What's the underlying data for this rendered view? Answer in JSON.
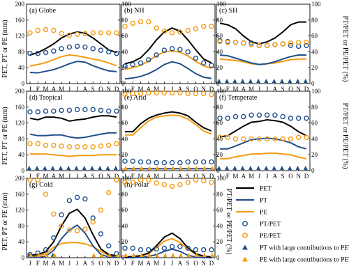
{
  "figure": {
    "left_axis_label": "PET, PT or PE (mm)",
    "right_axis_label": "PT/PET or PE/PET (%)",
    "left_ticks": [
      0,
      40,
      80,
      120,
      160,
      200
    ],
    "right_ticks": [
      0,
      20,
      40,
      60,
      80,
      100
    ],
    "months": [
      "J",
      "F",
      "M",
      "A",
      "M",
      "J",
      "J",
      "A",
      "S",
      "O",
      "N",
      "D"
    ]
  },
  "legend": {
    "items": [
      {
        "label": "PET",
        "kind": "line",
        "color": "#000000"
      },
      {
        "label": "PT",
        "kind": "line",
        "color": "#1f4e8c"
      },
      {
        "label": "PE",
        "kind": "line",
        "color": "#f39c12"
      },
      {
        "label": "PT/PET",
        "kind": "circle",
        "color": "#1f4e8c"
      },
      {
        "label": "PE/PET",
        "kind": "circle",
        "color": "#f39c12"
      },
      {
        "label": "PT with large contributions to PET",
        "kind": "triangle",
        "color": "#1f4e8c"
      },
      {
        "label": "PE with large contributions to PET",
        "kind": "triangle",
        "color": "#f39c12"
      }
    ]
  },
  "colors": {
    "PET": "#000000",
    "PT": "#1f4e8c",
    "PE": "#f39c12"
  },
  "chart_data": [
    {
      "type": "line",
      "title": "(a) Globe",
      "x": [
        "J",
        "F",
        "M",
        "A",
        "M",
        "J",
        "J",
        "A",
        "S",
        "O",
        "N",
        "D"
      ],
      "ylim_left": [
        0,
        200
      ],
      "ylim_right": [
        0,
        100
      ],
      "series": [
        {
          "name": "PET",
          "axis": "left",
          "values": [
            72,
            78,
            88,
            100,
            115,
            125,
            130,
            127,
            115,
            100,
            85,
            78
          ]
        },
        {
          "name": "PT",
          "axis": "left",
          "values": [
            28,
            27,
            31,
            35,
            42,
            50,
            56,
            54,
            45,
            38,
            32,
            30
          ]
        },
        {
          "name": "PE",
          "axis": "left",
          "values": [
            44,
            48,
            53,
            60,
            68,
            72,
            70,
            66,
            62,
            58,
            52,
            45
          ]
        },
        {
          "name": "PT/PET",
          "axis": "right",
          "values": [
            38,
            38,
            39,
            41,
            44,
            46,
            47,
            46,
            44,
            42,
            40,
            38
          ]
        },
        {
          "name": "PE/PET",
          "axis": "right",
          "values": [
            64,
            67,
            68,
            67,
            63,
            61,
            62,
            63,
            64,
            64,
            64,
            64
          ]
        },
        {
          "name": "PT with large contributions to PET",
          "months": []
        },
        {
          "name": "PE with large contributions to PET",
          "months": []
        }
      ]
    },
    {
      "type": "line",
      "title": "(b) NH",
      "x": [
        "J",
        "F",
        "M",
        "A",
        "M",
        "J",
        "J",
        "A",
        "S",
        "O",
        "N",
        "D"
      ],
      "ylim_left": [
        0,
        200
      ],
      "ylim_right": [
        0,
        100
      ],
      "series": [
        {
          "name": "PET",
          "axis": "left",
          "values": [
            50,
            55,
            65,
            85,
            110,
            130,
            140,
            132,
            110,
            85,
            62,
            52
          ]
        },
        {
          "name": "PT",
          "axis": "left",
          "values": [
            12,
            14,
            18,
            25,
            35,
            48,
            55,
            50,
            38,
            25,
            16,
            13
          ]
        },
        {
          "name": "PE",
          "axis": "left",
          "values": [
            36,
            40,
            46,
            57,
            70,
            80,
            82,
            79,
            70,
            56,
            45,
            38
          ]
        },
        {
          "name": "PT/PET",
          "axis": "right",
          "values": [
            22,
            24,
            26,
            30,
            36,
            42,
            44,
            43,
            40,
            32,
            26,
            23
          ]
        },
        {
          "name": "PE/PET",
          "axis": "right",
          "values": [
            72,
            76,
            78,
            78,
            70,
            66,
            64,
            65,
            67,
            69,
            72,
            72
          ]
        },
        {
          "name": "PT with large contributions to PET",
          "months": []
        },
        {
          "name": "PE with large contributions to PET",
          "months": []
        }
      ]
    },
    {
      "type": "line",
      "title": "(c) SH",
      "x": [
        "J",
        "F",
        "M",
        "A",
        "M",
        "J",
        "J",
        "A",
        "S",
        "O",
        "N",
        "D"
      ],
      "ylim_left": [
        0,
        200
      ],
      "ylim_right": [
        0,
        100
      ],
      "series": [
        {
          "name": "PET",
          "axis": "left",
          "values": [
            152,
            148,
            138,
            120,
            105,
            100,
            105,
            115,
            130,
            148,
            155,
            155
          ]
        },
        {
          "name": "PT",
          "axis": "left",
          "values": [
            72,
            70,
            64,
            58,
            52,
            48,
            50,
            55,
            62,
            68,
            72,
            72
          ]
        },
        {
          "name": "PE",
          "axis": "left",
          "values": [
            62,
            60,
            58,
            55,
            50,
            48,
            50,
            52,
            56,
            60,
            62,
            62
          ]
        },
        {
          "name": "PT/PET",
          "axis": "right",
          "values": [
            54,
            53,
            52,
            51,
            51,
            48,
            48,
            49,
            50,
            48,
            47,
            48
          ]
        },
        {
          "name": "PE/PET",
          "axis": "right",
          "values": [
            53,
            52,
            52,
            51,
            49,
            48,
            48,
            49,
            50,
            51,
            52,
            52
          ]
        },
        {
          "name": "PT with large contributions to PET",
          "months": [
            "J",
            "F",
            "M",
            "A",
            "M",
            "J",
            "J",
            "A",
            "S",
            "O",
            "N",
            "D"
          ]
        },
        {
          "name": "PE with large contributions to PET",
          "months": []
        }
      ]
    },
    {
      "type": "line",
      "title": "(d) Tropical",
      "x": [
        "J",
        "F",
        "M",
        "A",
        "M",
        "J",
        "J",
        "A",
        "S",
        "O",
        "N",
        "D"
      ],
      "ylim_left": [
        0,
        200
      ],
      "ylim_right": [
        0,
        100
      ],
      "series": [
        {
          "name": "PET",
          "axis": "left",
          "values": [
            132,
            128,
            135,
            135,
            132,
            125,
            128,
            130,
            135,
            138,
            138,
            135
          ]
        },
        {
          "name": "PT",
          "axis": "left",
          "values": [
            92,
            88,
            88,
            90,
            90,
            85,
            82,
            84,
            88,
            92,
            95,
            95
          ]
        },
        {
          "name": "PE",
          "axis": "left",
          "values": [
            42,
            42,
            42,
            40,
            38,
            36,
            38,
            38,
            38,
            40,
            40,
            40
          ]
        },
        {
          "name": "PT/PET",
          "axis": "right",
          "values": [
            74,
            74,
            75,
            75,
            76,
            76,
            77,
            77,
            77,
            76,
            75,
            75
          ]
        },
        {
          "name": "PE/PET",
          "axis": "right",
          "values": [
            34,
            34,
            32,
            32,
            31,
            30,
            30,
            30,
            30,
            31,
            32,
            34
          ]
        },
        {
          "name": "PT with large contributions to PET",
          "months": [
            "J",
            "F",
            "M",
            "A",
            "M",
            "J",
            "J",
            "A",
            "S",
            "O",
            "N",
            "D"
          ]
        },
        {
          "name": "PE with large contributions to PET",
          "months": []
        }
      ]
    },
    {
      "type": "line",
      "title": "(e) Arid",
      "x": [
        "J",
        "F",
        "M",
        "A",
        "M",
        "J",
        "J",
        "A",
        "S",
        "O",
        "N",
        "D"
      ],
      "ylim_left": [
        0,
        200
      ],
      "ylim_right": [
        0,
        100
      ],
      "series": [
        {
          "name": "PET",
          "axis": "left",
          "values": [
            98,
            98,
            118,
            132,
            140,
            145,
            148,
            145,
            138,
            122,
            108,
            100
          ]
        },
        {
          "name": "PT",
          "axis": "left",
          "values": [
            5,
            5,
            5,
            5,
            5,
            5,
            5,
            5,
            5,
            5,
            5,
            5
          ]
        },
        {
          "name": "PE",
          "axis": "left",
          "values": [
            90,
            90,
            108,
            125,
            135,
            138,
            140,
            138,
            130,
            116,
            100,
            92
          ]
        },
        {
          "name": "PT/PET",
          "axis": "right",
          "values": [
            12,
            12,
            11,
            11,
            10,
            10,
            10,
            10,
            11,
            11,
            11,
            11
          ]
        },
        {
          "name": "PE/PET",
          "axis": "right",
          "values": [
            96,
            97,
            97,
            98,
            98,
            98,
            98,
            98,
            97,
            97,
            97,
            96
          ]
        },
        {
          "name": "PT with large contributions to PET",
          "months": []
        },
        {
          "name": "PE with large contributions to PET",
          "months": [
            "J",
            "F",
            "M",
            "A",
            "M",
            "J",
            "J",
            "A",
            "S",
            "O",
            "N",
            "D"
          ]
        }
      ]
    },
    {
      "type": "line",
      "title": "(f) Temperate",
      "x": [
        "J",
        "F",
        "M",
        "A",
        "M",
        "J",
        "J",
        "A",
        "S",
        "O",
        "N",
        "D"
      ],
      "ylim_left": [
        0,
        200
      ],
      "ylim_right": [
        0,
        100
      ],
      "series": [
        {
          "name": "PET",
          "axis": "left",
          "values": [
            85,
            88,
            100,
            112,
            122,
            124,
            128,
            126,
            122,
            112,
            98,
            88
          ]
        },
        {
          "name": "PT",
          "axis": "left",
          "values": [
            55,
            55,
            62,
            70,
            78,
            80,
            82,
            80,
            76,
            70,
            60,
            55
          ]
        },
        {
          "name": "PE",
          "axis": "left",
          "values": [
            30,
            30,
            35,
            38,
            42,
            42,
            44,
            44,
            42,
            40,
            34,
            30
          ]
        },
        {
          "name": "PT/PET",
          "axis": "right",
          "values": [
            66,
            66,
            68,
            68,
            70,
            70,
            70,
            70,
            68,
            66,
            66,
            66
          ]
        },
        {
          "name": "PE/PET",
          "axis": "right",
          "values": [
            42,
            42,
            40,
            40,
            40,
            40,
            40,
            40,
            40,
            40,
            42,
            42
          ]
        },
        {
          "name": "PT with large contributions to PET",
          "months": [
            "J",
            "F",
            "M",
            "A",
            "M",
            "J",
            "J",
            "A",
            "S",
            "O",
            "N",
            "D"
          ]
        },
        {
          "name": "PE with large contributions to PET",
          "months": []
        }
      ]
    },
    {
      "type": "line",
      "title": "(g) Cold",
      "x": [
        "J",
        "F",
        "M",
        "A",
        "M",
        "J",
        "J",
        "A",
        "S",
        "O",
        "N",
        "D"
      ],
      "ylim_left": [
        0,
        200
      ],
      "ylim_right": [
        0,
        100
      ],
      "series": [
        {
          "name": "PET",
          "axis": "left",
          "values": [
            6,
            8,
            15,
            40,
            80,
            112,
            122,
            100,
            58,
            22,
            8,
            5
          ]
        },
        {
          "name": "PT",
          "axis": "left",
          "values": [
            1,
            1,
            4,
            18,
            48,
            70,
            82,
            62,
            30,
            8,
            2,
            1
          ]
        },
        {
          "name": "PE",
          "axis": "left",
          "values": [
            3,
            5,
            10,
            26,
            36,
            38,
            38,
            35,
            28,
            16,
            6,
            3
          ]
        },
        {
          "name": "PT/PET",
          "axis": "right",
          "values": [
            4,
            6,
            10,
            25,
            54,
            72,
            76,
            74,
            50,
            30,
            15,
            5
          ]
        },
        {
          "name": "PE/PET",
          "axis": "right",
          "values": [
            98,
            98,
            80,
            55,
            40,
            35,
            34,
            36,
            45,
            60,
            82,
            98
          ]
        },
        {
          "name": "PT with large contributions to PET",
          "months": [
            "J",
            "A"
          ]
        },
        {
          "name": "PE with large contributions to PET",
          "months": [
            "J",
            "F",
            "M",
            "A",
            "M",
            "J",
            "S",
            "O",
            "N",
            "D"
          ]
        }
      ]
    },
    {
      "type": "line",
      "title": "(h) Polar",
      "x": [
        "J",
        "F",
        "M",
        "A",
        "M",
        "J",
        "J",
        "A",
        "S",
        "O",
        "N",
        "D"
      ],
      "ylim_left": [
        0,
        200
      ],
      "ylim_right": [
        0,
        100
      ],
      "series": [
        {
          "name": "PET",
          "axis": "left",
          "values": [
            2,
            3,
            5,
            12,
            30,
            52,
            62,
            48,
            25,
            10,
            4,
            2
          ]
        },
        {
          "name": "PT",
          "axis": "left",
          "values": [
            0,
            0,
            1,
            3,
            8,
            16,
            22,
            16,
            6,
            2,
            0,
            0
          ]
        },
        {
          "name": "PE",
          "axis": "left",
          "values": [
            2,
            3,
            4,
            10,
            25,
            42,
            48,
            38,
            22,
            8,
            3,
            2
          ]
        },
        {
          "name": "PT/PET",
          "axis": "right",
          "values": [
            12,
            12,
            10,
            10,
            11,
            12,
            14,
            14,
            12,
            10,
            10,
            10
          ]
        },
        {
          "name": "PE/PET",
          "axis": "right",
          "values": [
            95,
            95,
            98,
            98,
            94,
            92,
            90,
            92,
            95,
            98,
            97,
            95
          ]
        },
        {
          "name": "PT with large contributions to PET",
          "months": []
        },
        {
          "name": "PE with large contributions to PET",
          "months": [
            "J",
            "F",
            "M",
            "A",
            "M",
            "J",
            "J",
            "A",
            "S",
            "O",
            "N",
            "D"
          ]
        }
      ]
    }
  ]
}
